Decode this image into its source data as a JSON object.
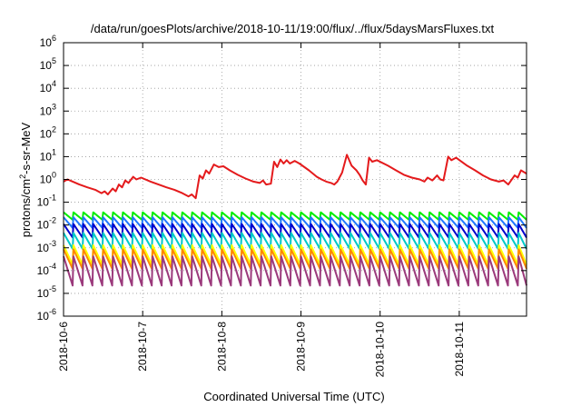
{
  "chart_data": {
    "type": "line",
    "title": "/data/run/goesPlots/archive/2018-10-11/19:00/flux/../flux/5daysMarsFluxes.txt",
    "xlabel": "Coordinated Universal Time (UTC)",
    "ylabel": {
      "base": "protons/cm",
      "sup": "2",
      "rest": "-s-sr-MeV"
    },
    "yscale": "log",
    "ylim_exp": [
      -6,
      6
    ],
    "y_tick_exponents": [
      "-6",
      "-5",
      "-4",
      "-3",
      "-2",
      "-1",
      "0",
      "1",
      "2",
      "3",
      "4",
      "5",
      "6"
    ],
    "y_tick_base": "10",
    "xlim_days": [
      0,
      5.85
    ],
    "x_tick_labels": [
      "2018-10-6",
      "2018-10-7",
      "2018-10-8",
      "2018-10-9",
      "2018-10-10",
      "2018-10-11"
    ],
    "grid": true,
    "red_series": {
      "name": "",
      "color": "#e41a1c",
      "points": [
        [
          0.0,
          0.8
        ],
        [
          0.05,
          1.0
        ],
        [
          0.1,
          0.85
        ],
        [
          0.2,
          0.6
        ],
        [
          0.3,
          0.45
        ],
        [
          0.4,
          0.35
        ],
        [
          0.48,
          0.25
        ],
        [
          0.52,
          0.3
        ],
        [
          0.56,
          0.22
        ],
        [
          0.62,
          0.4
        ],
        [
          0.66,
          0.3
        ],
        [
          0.7,
          0.6
        ],
        [
          0.74,
          0.45
        ],
        [
          0.78,
          0.9
        ],
        [
          0.82,
          0.7
        ],
        [
          0.88,
          1.3
        ],
        [
          0.92,
          1.0
        ],
        [
          0.98,
          1.2
        ],
        [
          1.1,
          0.8
        ],
        [
          1.2,
          0.6
        ],
        [
          1.3,
          0.45
        ],
        [
          1.4,
          0.35
        ],
        [
          1.5,
          0.25
        ],
        [
          1.58,
          0.18
        ],
        [
          1.62,
          0.22
        ],
        [
          1.67,
          0.15
        ],
        [
          1.72,
          1.5
        ],
        [
          1.76,
          1.1
        ],
        [
          1.8,
          2.5
        ],
        [
          1.84,
          1.8
        ],
        [
          1.9,
          4.5
        ],
        [
          1.96,
          3.5
        ],
        [
          2.02,
          3.8
        ],
        [
          2.1,
          2.5
        ],
        [
          2.2,
          1.6
        ],
        [
          2.3,
          1.1
        ],
        [
          2.4,
          0.8
        ],
        [
          2.48,
          0.7
        ],
        [
          2.52,
          0.9
        ],
        [
          2.56,
          0.6
        ],
        [
          2.62,
          0.65
        ],
        [
          2.66,
          6.0
        ],
        [
          2.7,
          3.5
        ],
        [
          2.74,
          7.5
        ],
        [
          2.78,
          5.0
        ],
        [
          2.82,
          7.0
        ],
        [
          2.86,
          5.0
        ],
        [
          2.92,
          6.5
        ],
        [
          2.98,
          5.0
        ],
        [
          3.1,
          2.5
        ],
        [
          3.2,
          1.3
        ],
        [
          3.26,
          1.0
        ],
        [
          3.32,
          0.8
        ],
        [
          3.38,
          0.7
        ],
        [
          3.42,
          0.6
        ],
        [
          3.46,
          0.8
        ],
        [
          3.52,
          2.0
        ],
        [
          3.58,
          12.0
        ],
        [
          3.64,
          4.0
        ],
        [
          3.7,
          2.5
        ],
        [
          3.74,
          1.6
        ],
        [
          3.78,
          0.9
        ],
        [
          3.82,
          0.6
        ],
        [
          3.86,
          9.0
        ],
        [
          3.9,
          6.0
        ],
        [
          3.96,
          7.0
        ],
        [
          4.1,
          4.0
        ],
        [
          4.2,
          2.5
        ],
        [
          4.3,
          1.6
        ],
        [
          4.4,
          1.2
        ],
        [
          4.5,
          1.0
        ],
        [
          4.56,
          0.8
        ],
        [
          4.6,
          1.2
        ],
        [
          4.66,
          0.9
        ],
        [
          4.72,
          1.5
        ],
        [
          4.76,
          1.0
        ],
        [
          4.8,
          0.9
        ],
        [
          4.86,
          10.0
        ],
        [
          4.9,
          7.0
        ],
        [
          4.96,
          9.0
        ],
        [
          5.1,
          4.0
        ],
        [
          5.2,
          2.5
        ],
        [
          5.3,
          1.5
        ],
        [
          5.4,
          1.0
        ],
        [
          5.5,
          0.8
        ],
        [
          5.56,
          0.9
        ],
        [
          5.62,
          0.6
        ],
        [
          5.7,
          1.5
        ],
        [
          5.74,
          1.2
        ],
        [
          5.78,
          2.5
        ],
        [
          5.85,
          1.8
        ]
      ]
    },
    "sawtooth_series": [
      {
        "name": "",
        "color": "#00ee00",
        "high": 0.036,
        "low": 0.017
      },
      {
        "name": "",
        "color": "#1f78ff",
        "high": 0.022,
        "low": 0.0075
      },
      {
        "name": "",
        "color": "#0000cc",
        "high": 0.011,
        "low": 0.0028
      },
      {
        "name": "",
        "color": "#00c8c8",
        "high": 0.0045,
        "low": 0.0009
      },
      {
        "name": "",
        "color": "#ffff00",
        "high": 0.0013,
        "low": 0.00018
      },
      {
        "name": "",
        "color": "#ff8800",
        "high": 0.00085,
        "low": 0.00012
      },
      {
        "name": "",
        "color": "#9b3a7c",
        "high": 0.00042,
        "low": 2.2e-05
      }
    ],
    "sawtooth_period_days": 0.125
  }
}
